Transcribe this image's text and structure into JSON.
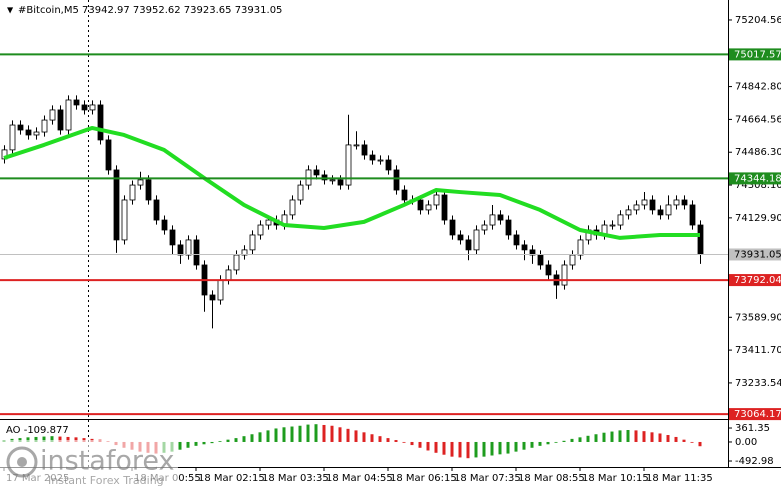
{
  "chart_data": [
    {
      "type": "candlestick",
      "title": "#Bitcoin,M5  73942.97 73952.62 73923.65 73931.05",
      "ylim": [
        73043,
        75313
      ],
      "yticks": [
        {
          "value": 75204.56,
          "label": "75204.56"
        },
        {
          "value": 74842.8,
          "label": "74842.80"
        },
        {
          "value": 74664.56,
          "label": "74664.56"
        },
        {
          "value": 74486.3,
          "label": "74486.30"
        },
        {
          "value": 74308.1,
          "label": "74308.10"
        },
        {
          "value": 74129.9,
          "label": "74129.90"
        },
        {
          "value": 73589.9,
          "label": "73589.90"
        },
        {
          "value": 73411.7,
          "label": "73411.70"
        },
        {
          "value": 73233.54,
          "label": "73233.54"
        }
      ],
      "candles": [
        [
          74450,
          74524,
          74425,
          74499
        ],
        [
          74499,
          74659,
          74474,
          74634
        ],
        [
          74634,
          74659,
          74582,
          74607
        ],
        [
          74607,
          74632,
          74555,
          74580
        ],
        [
          74580,
          74621,
          74555,
          74596
        ],
        [
          74596,
          74686,
          74571,
          74661
        ],
        [
          74661,
          74741,
          74636,
          74716
        ],
        [
          74716,
          74741,
          74582,
          74607
        ],
        [
          74607,
          74795,
          74582,
          74770
        ],
        [
          74770,
          74795,
          74718,
          74743
        ],
        [
          74743,
          74768,
          74691,
          74716
        ],
        [
          74716,
          74768,
          74691,
          74743
        ],
        [
          74743,
          74768,
          74528,
          74553
        ],
        [
          74553,
          74578,
          74365,
          74390
        ],
        [
          74390,
          74415,
          73940,
          74010
        ],
        [
          74010,
          74252,
          73985,
          74227
        ],
        [
          74227,
          74333,
          74202,
          74308
        ],
        [
          74308,
          74380,
          74283,
          74336
        ],
        [
          74336,
          74361,
          74202,
          74227
        ],
        [
          74227,
          74252,
          74093,
          74118
        ],
        [
          74118,
          74143,
          74039,
          74064
        ],
        [
          74064,
          74089,
          73930,
          73983
        ],
        [
          73983,
          74008,
          73880,
          73928
        ],
        [
          73928,
          74035,
          73903,
          74010
        ],
        [
          74010,
          74035,
          73849,
          73874
        ],
        [
          73874,
          73899,
          73620,
          73711
        ],
        [
          73711,
          73736,
          73530,
          73684
        ],
        [
          73684,
          73818,
          73659,
          73793
        ],
        [
          73793,
          73872,
          73768,
          73847
        ],
        [
          73847,
          73953,
          73822,
          73928
        ],
        [
          73928,
          73981,
          73903,
          73956
        ],
        [
          73956,
          74062,
          73931,
          74037
        ],
        [
          74037,
          74116,
          74012,
          74091
        ],
        [
          74091,
          74143,
          74066,
          74118
        ],
        [
          74118,
          74143,
          74066,
          74091
        ],
        [
          74091,
          74171,
          74066,
          74146
        ],
        [
          74146,
          74252,
          74121,
          74227
        ],
        [
          74227,
          74333,
          74202,
          74308
        ],
        [
          74308,
          74415,
          74283,
          74390
        ],
        [
          74390,
          74415,
          74338,
          74363
        ],
        [
          74363,
          74388,
          74311,
          74336
        ],
        [
          74336,
          74361,
          74311,
          74336
        ],
        [
          74336,
          74361,
          74283,
          74308
        ],
        [
          74308,
          74690,
          74283,
          74526
        ],
        [
          74526,
          74600,
          74501,
          74526
        ],
        [
          74526,
          74551,
          74446,
          74471
        ],
        [
          74471,
          74496,
          74419,
          74444
        ],
        [
          74444,
          74469,
          74419,
          74444
        ],
        [
          74444,
          74469,
          74365,
          74390
        ],
        [
          74390,
          74415,
          74256,
          74281
        ],
        [
          74281,
          74306,
          74202,
          74227
        ],
        [
          74227,
          74252,
          74202,
          74227
        ],
        [
          74227,
          74252,
          74148,
          74173
        ],
        [
          74173,
          74225,
          74148,
          74200
        ],
        [
          74200,
          74279,
          74175,
          74254
        ],
        [
          74254,
          74279,
          74093,
          74118
        ],
        [
          74118,
          74143,
          74012,
          74037
        ],
        [
          74037,
          74062,
          73985,
          74010
        ],
        [
          74010,
          74035,
          73900,
          73956
        ],
        [
          73956,
          74089,
          73931,
          74064
        ],
        [
          74064,
          74116,
          74039,
          74091
        ],
        [
          74091,
          74200,
          74066,
          74146
        ],
        [
          74146,
          74171,
          74093,
          74118
        ],
        [
          74118,
          74143,
          74012,
          74037
        ],
        [
          74037,
          74062,
          73958,
          73983
        ],
        [
          73983,
          74008,
          73900,
          73956
        ],
        [
          73956,
          73981,
          73880,
          73928
        ],
        [
          73928,
          73953,
          73849,
          73874
        ],
        [
          73874,
          73899,
          73795,
          73820
        ],
        [
          73820,
          73845,
          73690,
          73765
        ],
        [
          73765,
          73899,
          73740,
          73874
        ],
        [
          73874,
          73953,
          73849,
          73928
        ],
        [
          73928,
          74035,
          73903,
          74010
        ],
        [
          74010,
          74089,
          73985,
          74064
        ],
        [
          74064,
          74089,
          74012,
          74037
        ],
        [
          74037,
          74116,
          74012,
          74091
        ],
        [
          74091,
          74116,
          74066,
          74091
        ],
        [
          74091,
          74171,
          74066,
          74146
        ],
        [
          74146,
          74198,
          74121,
          74173
        ],
        [
          74173,
          74225,
          74148,
          74200
        ],
        [
          74200,
          74270,
          74175,
          74227
        ],
        [
          74227,
          74252,
          74148,
          74173
        ],
        [
          74173,
          74198,
          74121,
          74146
        ],
        [
          74146,
          74252,
          74121,
          74200
        ],
        [
          74200,
          74252,
          74175,
          74227
        ],
        [
          74227,
          74252,
          74175,
          74200
        ],
        [
          74200,
          74225,
          74066,
          74091
        ],
        [
          74091,
          74116,
          73880,
          73931.05
        ]
      ],
      "moving_average": {
        "color": "#22dd22",
        "x": [
          0,
          5,
          11,
          15,
          20,
          25,
          30,
          35,
          40,
          45,
          50,
          54,
          57,
          62,
          67,
          72,
          77,
          82,
          87
        ],
        "values": [
          74455,
          74526,
          74618,
          74580,
          74499,
          74347,
          74200,
          74091,
          74075,
          74108,
          74200,
          74281,
          74270,
          74254,
          74173,
          74064,
          74021,
          74037,
          74037
        ]
      },
      "levels": [
        {
          "value": 75017.57,
          "color": "#1e8c1e"
        },
        {
          "value": 74344.18,
          "color": "#1e8c1e"
        },
        {
          "value": 73931.05,
          "color": "#c0c0c0"
        },
        {
          "value": 73792.04,
          "color": "#dd2222"
        },
        {
          "value": 73064.17,
          "color": "#dd2222"
        }
      ],
      "x_labels": [
        "17 Mar 2025",
        null,
        "18 Mar 00:55",
        "18 Mar 02:15",
        "18 Mar 03:35",
        "18 Mar 04:55",
        "18 Mar 06:15",
        "18 Mar 07:35",
        "18 Mar 08:55",
        "18 Mar 10:15",
        "18 Mar 11:35"
      ]
    },
    {
      "type": "bar",
      "title": "AO -109.877",
      "ylim": [
        -622,
        543
      ],
      "yticks": [
        361.35,
        {
          "value": 0,
          "label": "0.00"
        },
        -492.98
      ],
      "up_color": "#1e9c1e",
      "down_color": "#dd2222",
      "values": [
        50,
        80,
        100,
        120,
        130,
        140,
        150,
        140,
        130,
        120,
        100,
        80,
        60,
        20,
        -80,
        -150,
        -200,
        -250,
        -280,
        -300,
        -280,
        -250,
        -200,
        -150,
        -100,
        -60,
        -30,
        20,
        60,
        100,
        150,
        200,
        250,
        300,
        350,
        380,
        400,
        420,
        450,
        460,
        440,
        420,
        380,
        340,
        300,
        250,
        200,
        150,
        100,
        50,
        -20,
        -80,
        -150,
        -220,
        -280,
        -330,
        -380,
        -400,
        -420,
        -400,
        -380,
        -350,
        -320,
        -300,
        -250,
        -200,
        -150,
        -100,
        -60,
        -20,
        30,
        80,
        120,
        160,
        200,
        240,
        270,
        300,
        310,
        300,
        280,
        250,
        220,
        180,
        130,
        60,
        -20,
        -109.877
      ]
    }
  ],
  "watermark": {
    "brand": "instaforex",
    "tagline": "Instant Forex Trading"
  }
}
